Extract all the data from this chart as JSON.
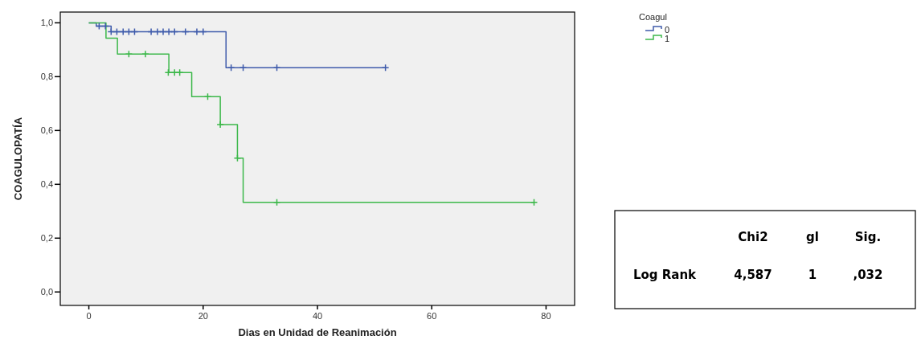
{
  "chart_data": {
    "type": "step",
    "xlabel": "Dias en Unidad de Reanimación",
    "ylabel": "COAGULOPATÍA",
    "legend_title": "Coagul",
    "legend": "top right",
    "xlim": [
      -5,
      85
    ],
    "xticks": [
      0,
      20,
      40,
      60,
      80
    ],
    "ylim": [
      -0.05,
      1.04
    ],
    "yticks": [
      {
        "value": 0,
        "label": "0,0"
      },
      {
        "value": 0.2,
        "label": "0,2"
      },
      {
        "value": 0.4,
        "label": "0,4"
      },
      {
        "value": 0.6,
        "label": "0,6"
      },
      {
        "value": 0.8,
        "label": "0,8"
      },
      {
        "value": 1,
        "label": "1,0"
      }
    ],
    "grid": false,
    "marker": "none",
    "line_style": "solid",
    "series": [
      {
        "name": "0",
        "color": "#3f5bab",
        "x": [
          0,
          1.3,
          3.9,
          24,
          52
        ],
        "values": [
          1.0,
          0.988,
          0.967,
          0.833,
          0.833
        ]
      },
      {
        "name": "1",
        "color": "#3cb84a",
        "x": [
          0,
          3,
          5,
          14,
          18,
          23,
          26,
          27,
          78
        ],
        "values": [
          1.0,
          0.943,
          0.884,
          0.815,
          0.726,
          0.622,
          0.497,
          0.333,
          0.333
        ]
      },
      {
        "type": "scatter",
        "marker": "cross",
        "color": "#3f5bab",
        "x": [
          1.8,
          2.9,
          3.9,
          4.9,
          6.0,
          7.0,
          8.0,
          10.9,
          12.0,
          13.0,
          14.0,
          15.0,
          16.9,
          18.9,
          20.0,
          24.9,
          27.0,
          32.9,
          51.9
        ],
        "values": [
          0.988,
          0.988,
          0.967,
          0.967,
          0.967,
          0.967,
          0.967,
          0.967,
          0.967,
          0.967,
          0.967,
          0.967,
          0.967,
          0.967,
          0.967,
          0.833,
          0.833,
          0.833,
          0.833
        ]
      },
      {
        "type": "scatter",
        "marker": "cross",
        "color": "#3cb84a",
        "x": [
          7.0,
          9.9,
          13.9,
          15.0,
          15.9,
          20.8,
          23,
          26,
          32.9,
          77.9
        ],
        "values": [
          0.884,
          0.884,
          0.815,
          0.815,
          0.815,
          0.726,
          0.622,
          0.497,
          0.333,
          0.333
        ]
      }
    ],
    "annotations": [
      "Chi2",
      "gl",
      "Sig.",
      "Log Rank",
      "4,587",
      "1",
      ",032"
    ]
  }
}
